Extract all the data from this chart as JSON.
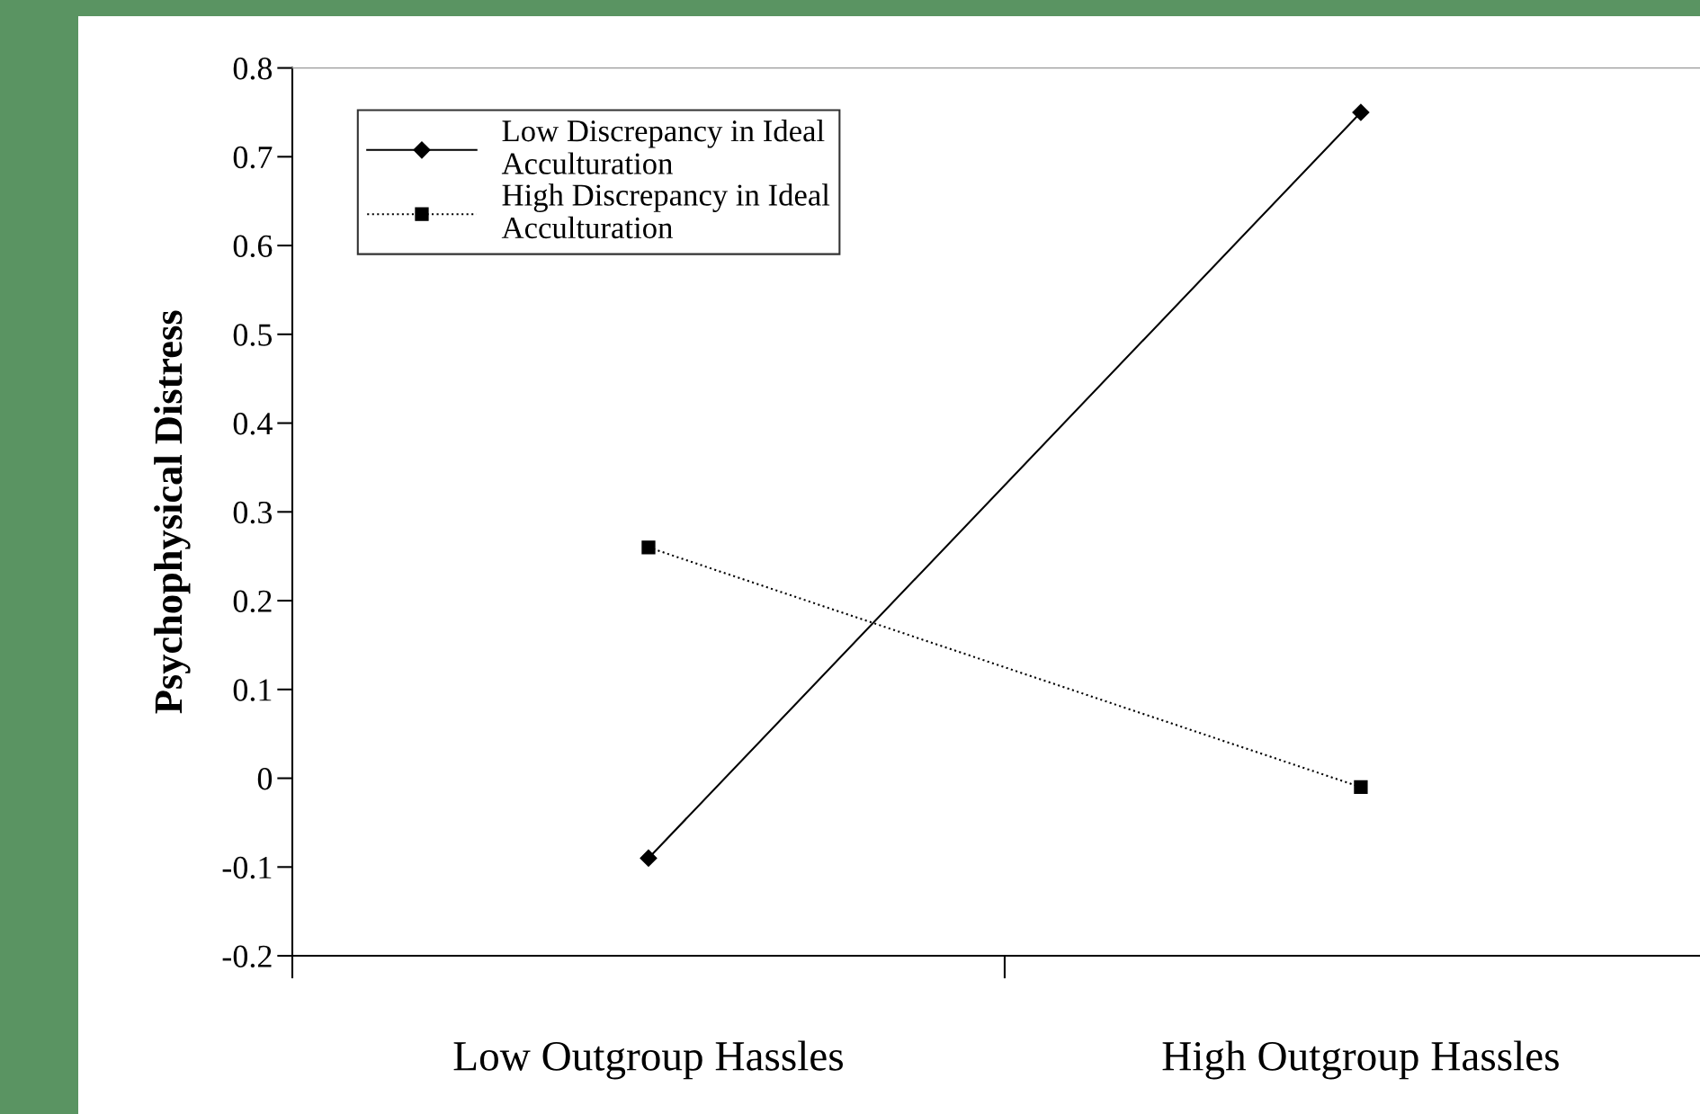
{
  "chart_data": {
    "type": "line",
    "ylabel": "Psychophysical Distress",
    "categories": [
      "Low Outgroup Hassles",
      "High Outgroup Hassles"
    ],
    "series": [
      {
        "name": "Low Discrepancy in Ideal\nAcculturation",
        "color": "#000000",
        "values": [
          -0.09,
          0.75
        ],
        "marker": "diamond",
        "line_style": "solid"
      },
      {
        "name": "High Discrepancy in Ideal\nAcculturation",
        "color": "#000000",
        "values": [
          0.26,
          -0.01
        ],
        "marker": "square",
        "line_style": "dotted"
      }
    ],
    "ylim": [
      -0.2,
      0.8
    ],
    "yticks": [
      -0.2,
      -0.1,
      0,
      0.1,
      0.2,
      0.3,
      0.4,
      0.5,
      0.6,
      0.7,
      0.8
    ],
    "grid": false,
    "legend": "top left"
  }
}
